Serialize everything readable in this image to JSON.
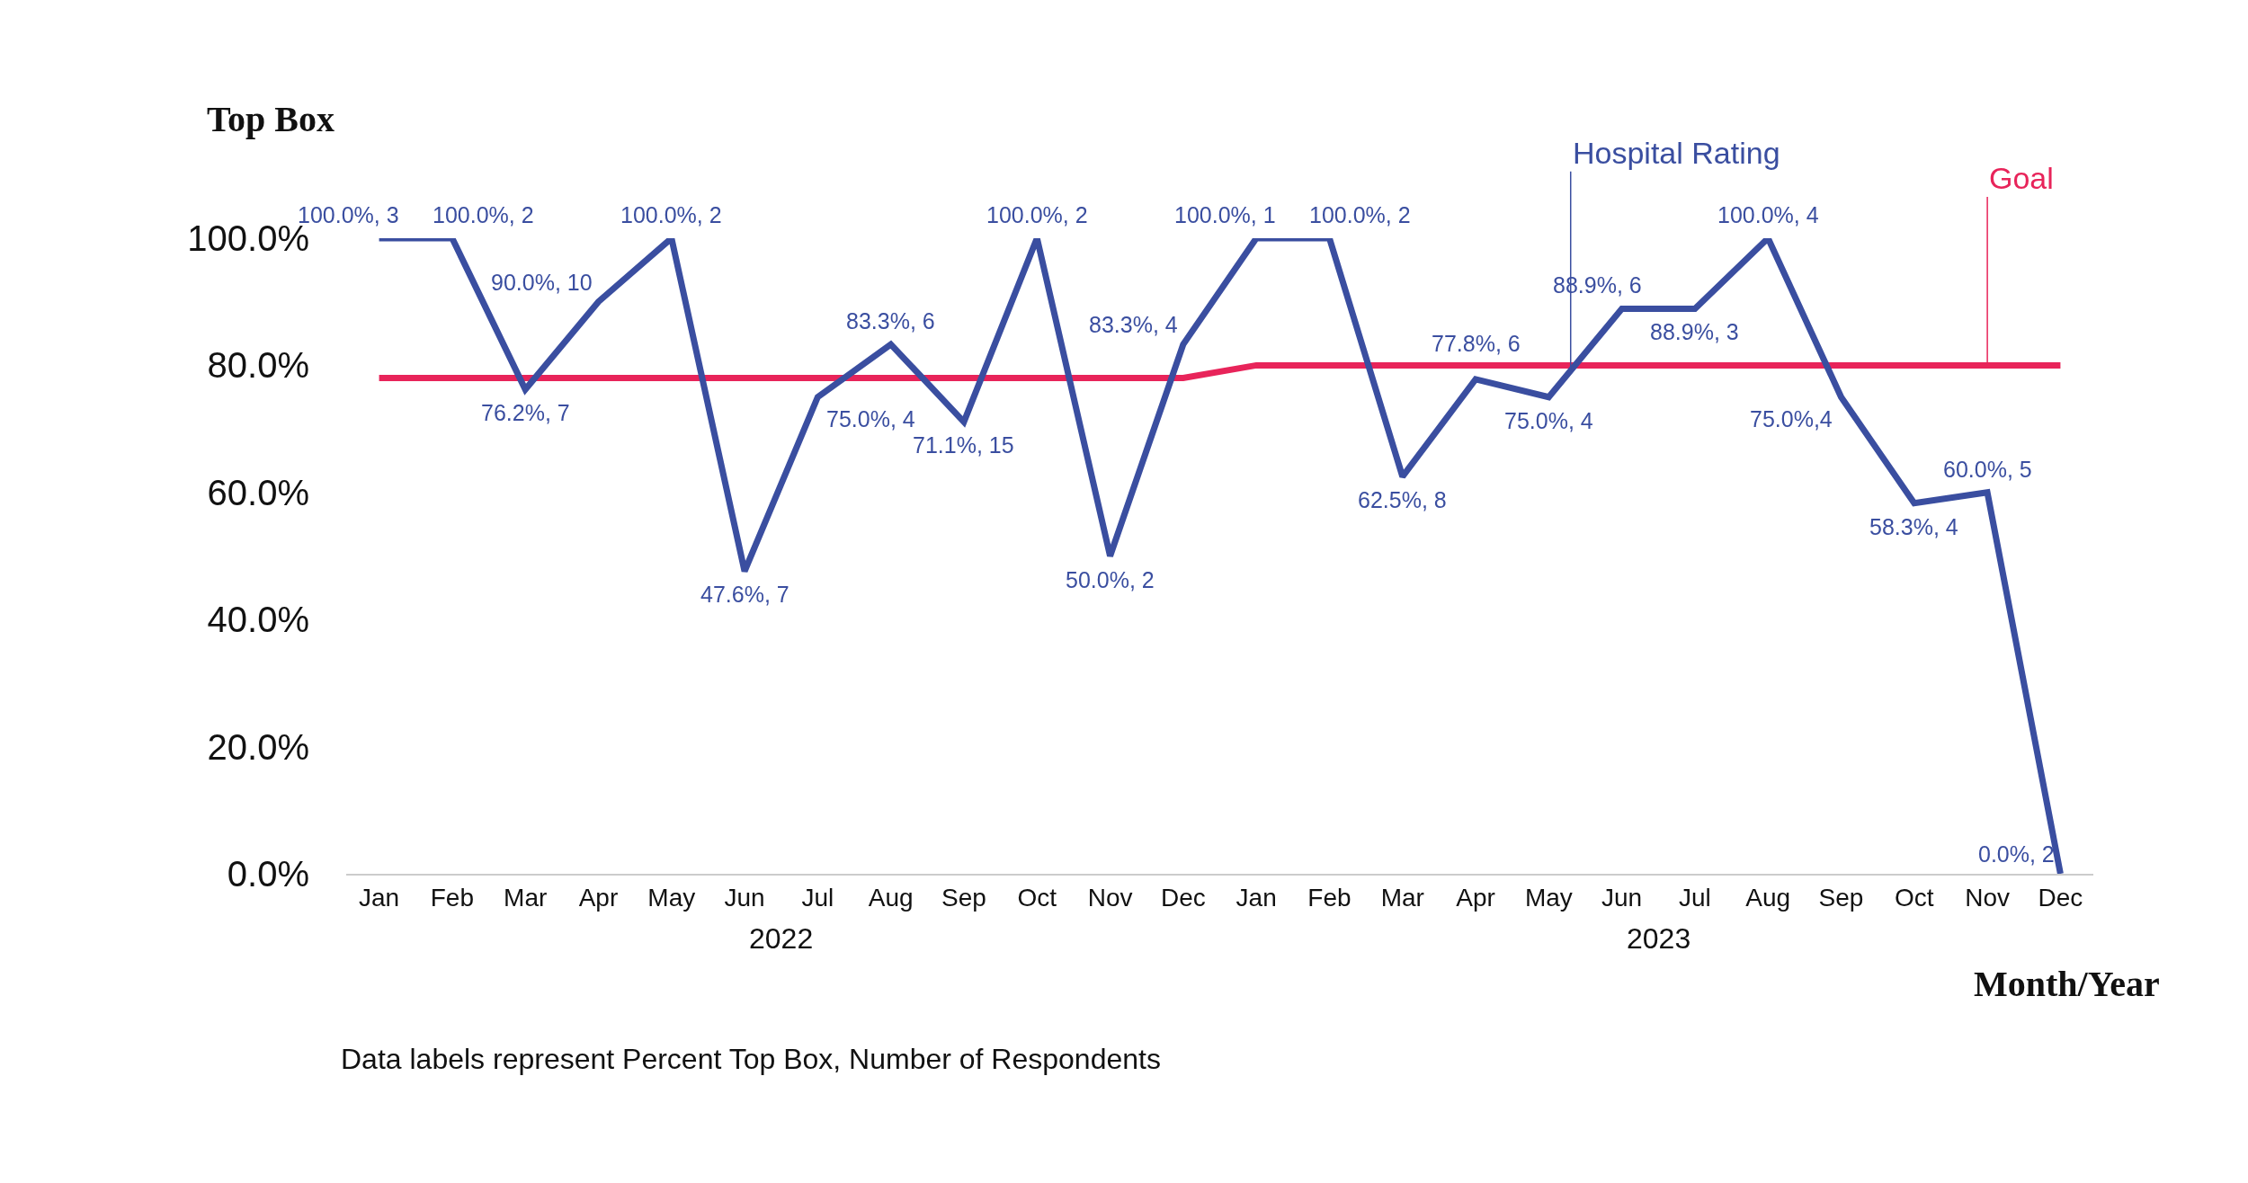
{
  "chart_data": {
    "type": "line",
    "ylabel": "Top Box",
    "xlabel": "Month/Year",
    "categories": [
      "Jan",
      "Feb",
      "Mar",
      "Apr",
      "May",
      "Jun",
      "Jul",
      "Aug",
      "Sep",
      "Oct",
      "Nov",
      "Dec",
      "Jan",
      "Feb",
      "Mar",
      "Apr",
      "May",
      "Jun",
      "Jul",
      "Aug",
      "Sep",
      "Oct",
      "Nov",
      "Dec"
    ],
    "series": [
      {
        "name": "Hospital Rating",
        "color": "#3a4ea0",
        "values": [
          100,
          100,
          76.2,
          90,
          100,
          47.6,
          75,
          83.3,
          71.1,
          100,
          50,
          83.3,
          100,
          100,
          62.5,
          77.8,
          75,
          88.9,
          88.9,
          100,
          75,
          58.3,
          60,
          0
        ],
        "value_labels": [
          "100.0%, 3",
          "100.0%, 2",
          "76.2%, 7",
          "90.0%, 10",
          "100.0%, 2",
          "47.6%, 7",
          "75.0%, 4",
          "83.3%, 6",
          "71.1%, 15",
          "100.0%, 2",
          "50.0%, 2",
          "83.3%, 4",
          "100.0%, 1",
          "100.0%, 2",
          "62.5%, 8",
          "77.8%, 6",
          "75.0%, 4",
          "88.9%, 6",
          "88.9%, 3",
          "100.0%, 4",
          "75.0%,4",
          "58.3%, 4",
          "60.0%, 5",
          "0.0%, 2"
        ]
      },
      {
        "name": "Goal",
        "color": "#e8245a",
        "values": [
          78,
          78,
          78,
          78,
          78,
          78,
          78,
          78,
          78,
          78,
          78,
          78,
          80,
          80,
          80,
          80,
          80,
          80,
          80,
          80,
          80,
          80,
          80,
          80
        ]
      }
    ],
    "ylim": [
      0,
      100
    ],
    "yticks": [
      {
        "value": 0,
        "label": "0.0%"
      },
      {
        "value": 20,
        "label": "20.0%"
      },
      {
        "value": 40,
        "label": "40.0%"
      },
      {
        "value": 60,
        "label": "60.0%"
      },
      {
        "value": 80,
        "label": "80.0%"
      },
      {
        "value": 100,
        "label": "100.0%"
      }
    ],
    "grid": false,
    "legend": false,
    "marker": "none",
    "line_style": "solid",
    "annotations": [
      "2022",
      "2023",
      "Data labels represent Percent Top Box, Number of Respondents"
    ]
  }
}
